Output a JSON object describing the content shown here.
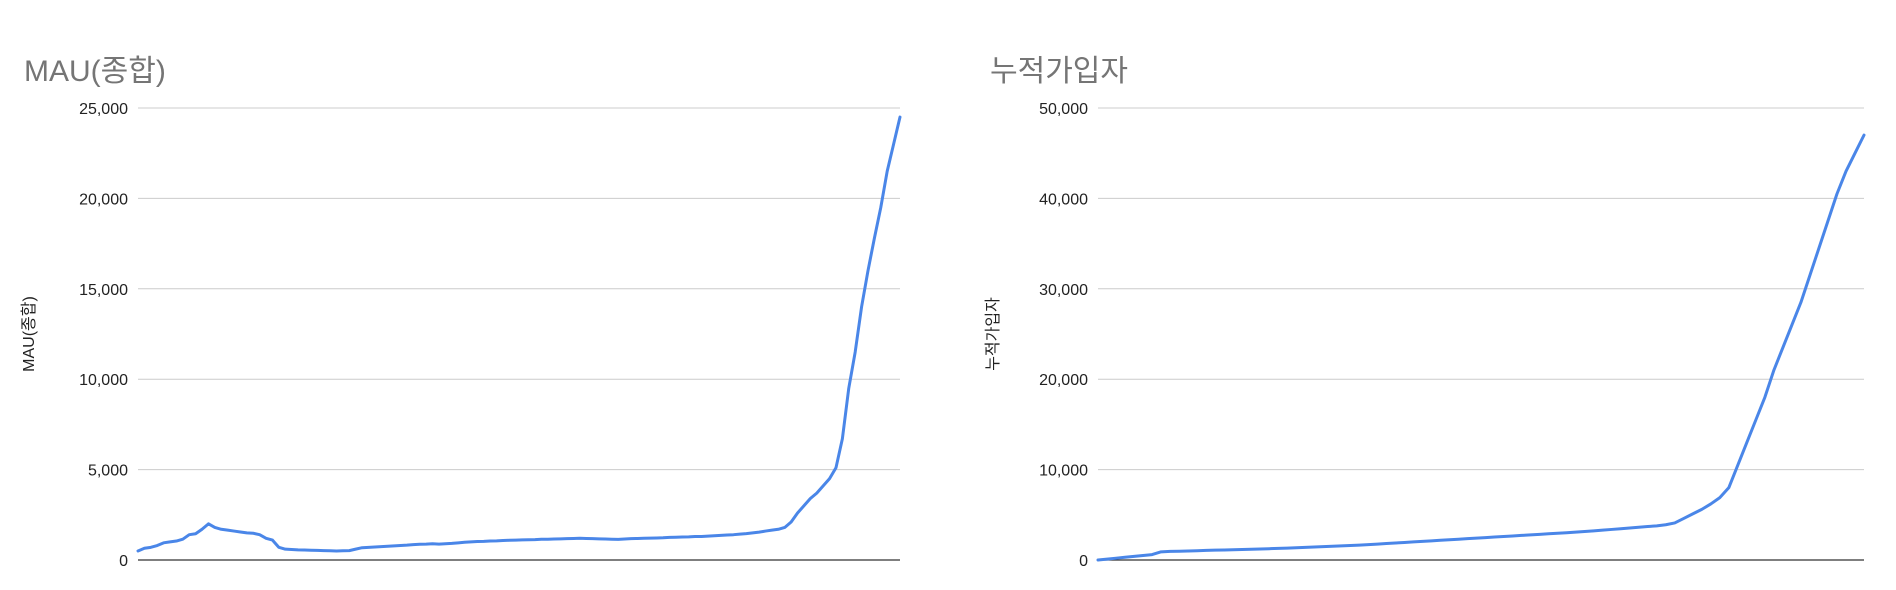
{
  "chart_data": [
    {
      "type": "line",
      "title": "MAU(종합)",
      "xlabel": "",
      "ylabel": "MAU(종합)",
      "ylim": [
        0,
        25000
      ],
      "yticks": [
        0,
        5000,
        10000,
        15000,
        20000,
        25000
      ],
      "ytick_labels": [
        "0",
        "5,000",
        "10,000",
        "15,000",
        "20,000",
        "25,000"
      ],
      "grid": true,
      "line_color": "#4a86e8",
      "series": [
        {
          "values": [
            500,
            650,
            700,
            800,
            950,
            1000,
            1050,
            1150,
            1400,
            1450,
            1700,
            2000,
            1800,
            1700,
            1650,
            1600,
            1550,
            1500,
            1480,
            1400,
            1200,
            1100,
            700,
            600,
            580,
            560,
            550,
            540,
            530,
            520,
            510,
            500,
            510,
            520,
            600,
            680,
            700,
            720,
            740,
            760,
            780,
            800,
            820,
            850,
            870,
            880,
            900,
            880,
            900,
            920,
            950,
            980,
            1000,
            1020,
            1030,
            1050,
            1060,
            1080,
            1090,
            1100,
            1110,
            1120,
            1130,
            1150,
            1150,
            1160,
            1170,
            1180,
            1190,
            1200,
            1190,
            1180,
            1170,
            1160,
            1150,
            1140,
            1160,
            1180,
            1190,
            1200,
            1210,
            1220,
            1230,
            1250,
            1260,
            1270,
            1280,
            1300,
            1300,
            1320,
            1340,
            1360,
            1380,
            1400,
            1430,
            1460,
            1500,
            1540,
            1600,
            1650,
            1700,
            1800,
            2100,
            2600,
            3000,
            3400,
            3700,
            4100,
            4500,
            5100,
            6700,
            9500,
            11500,
            14000,
            16000,
            17800,
            19500,
            21500,
            23000,
            24500
          ]
        }
      ]
    },
    {
      "type": "line",
      "title": "누적가입자",
      "xlabel": "",
      "ylabel": "누적가입자",
      "ylim": [
        0,
        50000
      ],
      "yticks": [
        0,
        10000,
        20000,
        30000,
        40000,
        50000
      ],
      "ytick_labels": [
        "0",
        "10,000",
        "20,000",
        "30,000",
        "40,000",
        "50,000"
      ],
      "grid": true,
      "line_color": "#4a86e8",
      "series": [
        {
          "values": [
            0,
            100,
            200,
            300,
            400,
            500,
            600,
            900,
            950,
            970,
            1000,
            1030,
            1060,
            1090,
            1110,
            1140,
            1160,
            1190,
            1220,
            1250,
            1280,
            1320,
            1360,
            1400,
            1440,
            1480,
            1520,
            1560,
            1600,
            1650,
            1700,
            1760,
            1820,
            1880,
            1940,
            2000,
            2060,
            2120,
            2180,
            2240,
            2300,
            2360,
            2420,
            2480,
            2540,
            2600,
            2660,
            2720,
            2780,
            2840,
            2900,
            2960,
            3020,
            3080,
            3150,
            3220,
            3300,
            3380,
            3460,
            3540,
            3620,
            3700,
            3780,
            3900,
            4100,
            4600,
            5100,
            5600,
            6200,
            6900,
            8000,
            10500,
            13000,
            15500,
            18000,
            21000,
            23500,
            26000,
            28500,
            31500,
            34500,
            37500,
            40500,
            43000,
            45000,
            47000
          ]
        }
      ]
    }
  ]
}
